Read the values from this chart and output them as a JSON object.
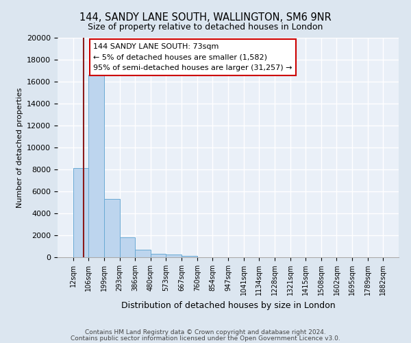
{
  "title": "144, SANDY LANE SOUTH, WALLINGTON, SM6 9NR",
  "subtitle": "Size of property relative to detached houses in London",
  "xlabel": "Distribution of detached houses by size in London",
  "ylabel": "Number of detached properties",
  "bar_values": [
    8100,
    16600,
    5300,
    1800,
    700,
    300,
    250,
    150,
    0,
    0,
    0,
    0,
    0,
    0,
    0,
    0,
    0,
    0,
    0,
    0
  ],
  "bin_labels": [
    "12sqm",
    "106sqm",
    "199sqm",
    "293sqm",
    "386sqm",
    "480sqm",
    "573sqm",
    "667sqm",
    "760sqm",
    "854sqm",
    "947sqm",
    "1041sqm",
    "1134sqm",
    "1228sqm",
    "1321sqm",
    "1415sqm",
    "1508sqm",
    "1602sqm",
    "1695sqm",
    "1789sqm",
    "1882sqm"
  ],
  "bar_color": "#bdd5ee",
  "bar_edge_color": "#6aaad4",
  "vline_color": "#8b1a1a",
  "annotation_title": "144 SANDY LANE SOUTH: 73sqm",
  "annotation_line1": "← 5% of detached houses are smaller (1,582)",
  "annotation_line2": "95% of semi-detached houses are larger (31,257) →",
  "ylim": [
    0,
    20000
  ],
  "yticks": [
    0,
    2000,
    4000,
    6000,
    8000,
    10000,
    12000,
    14000,
    16000,
    18000,
    20000
  ],
  "footer1": "Contains HM Land Registry data © Crown copyright and database right 2024.",
  "footer2": "Contains public sector information licensed under the Open Government Licence v3.0.",
  "bg_color": "#dce6f0",
  "plot_bg_color": "#eaf0f8",
  "grid_color": "#ffffff"
}
